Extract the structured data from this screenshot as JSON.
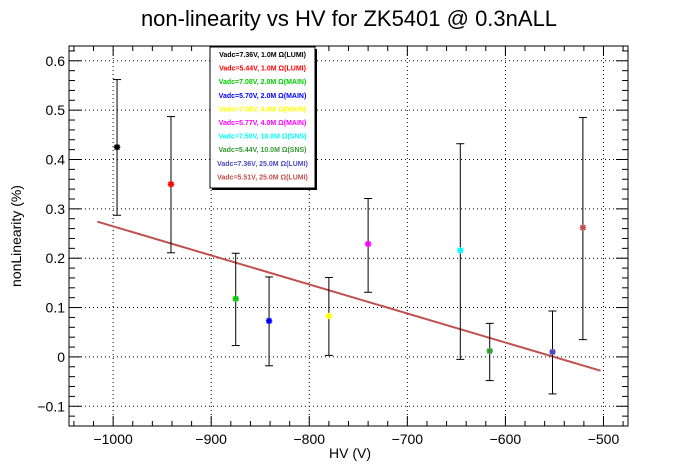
{
  "chart_data": {
    "type": "scatter",
    "title": "non-linearity vs HV for ZK5401 @ 0.3nALL",
    "xlabel": "HV (V)",
    "ylabel": "nonLinearity (%)",
    "xlim": [
      -1045,
      -475
    ],
    "ylim": [
      -0.14,
      0.63
    ],
    "xticks": [
      -1000,
      -900,
      -800,
      -700,
      -600,
      -500
    ],
    "xtick_labels": [
      "−1000",
      "−900",
      "−800",
      "−700",
      "−600",
      "−500"
    ],
    "yticks": [
      -0.1,
      0,
      0.1,
      0.2,
      0.3,
      0.4,
      0.5,
      0.6
    ],
    "ytick_labels": [
      "−0.1",
      "0",
      "0.1",
      "0.2",
      "0.3",
      "0.4",
      "0.5",
      "0.6"
    ],
    "grid": true,
    "legend_position": "top-left",
    "series": [
      {
        "name": "Vadc=7.36V, 1.0M Ω(LUMI)",
        "color": "#000000",
        "x": -996,
        "y": 0.425,
        "err_low": 0.287,
        "err_high": 0.562
      },
      {
        "name": "Vadc=5.44V, 1.0M Ω(LUMI)",
        "color": "#ff0000",
        "x": -941,
        "y": 0.35,
        "err_low": 0.211,
        "err_high": 0.487
      },
      {
        "name": "Vadc=7.08V, 2.0M Ω(MAIN)",
        "color": "#00cc00",
        "x": -875,
        "y": 0.118,
        "err_low": 0.023,
        "err_high": 0.21
      },
      {
        "name": "Vadc=5.70V, 2.0M Ω(MAIN)",
        "color": "#0000ff",
        "x": -841,
        "y": 0.073,
        "err_low": -0.018,
        "err_high": 0.162
      },
      {
        "name": "Vadc=7.08V, 4.0M Ω(MAIN)",
        "color": "#ffff00",
        "x": -780,
        "y": 0.083,
        "err_low": 0.003,
        "err_high": 0.161
      },
      {
        "name": "Vadc=5.77V, 4.0M Ω(MAIN)",
        "color": "#ff00ff",
        "x": -740,
        "y": 0.229,
        "err_low": 0.131,
        "err_high": 0.321
      },
      {
        "name": "Vadc=7.50V, 10.0M Ω(SNS)",
        "color": "#00ffff",
        "x": -646,
        "y": 0.216,
        "err_low": -0.005,
        "err_high": 0.432
      },
      {
        "name": "Vadc=5.44V, 10.0M Ω(SNS)",
        "color": "#339933",
        "x": -616,
        "y": 0.012,
        "err_low": -0.048,
        "err_high": 0.068
      },
      {
        "name": "Vadc=7.36V, 25.0M Ω(LUMI)",
        "color": "#4b4bbe",
        "x": -552,
        "y": 0.01,
        "err_low": -0.075,
        "err_high": 0.093
      },
      {
        "name": "Vadc=5.51V, 25.0M Ω(LUMI)",
        "color": "#c0504d",
        "x": -521,
        "y": 0.262,
        "err_low": 0.035,
        "err_high": 0.485
      }
    ],
    "fit_line": {
      "color": "#c0504d",
      "x": [
        -1016,
        -503
      ],
      "y": [
        0.274,
        -0.028
      ]
    }
  }
}
